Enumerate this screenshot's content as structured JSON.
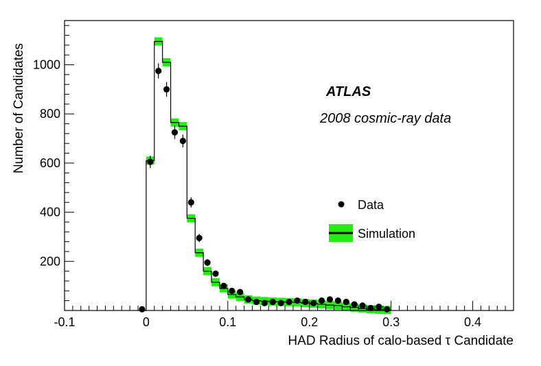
{
  "chart_data": {
    "type": "histogram",
    "title": "",
    "xlabel": "HAD Radius of calo-based τ Candidate",
    "ylabel": "Number of Candidates",
    "xlim": [
      -0.1,
      0.45
    ],
    "ylim": [
      0,
      1180
    ],
    "x_ticks": [
      -0.1,
      0,
      0.1,
      0.2,
      0.3,
      0.4
    ],
    "x_tick_labels": [
      "-0.1",
      "0",
      "0.1",
      "0.2",
      "0.3",
      "0.4"
    ],
    "y_ticks": [
      200,
      400,
      600,
      800,
      1000
    ],
    "y_tick_labels": [
      "200",
      "400",
      "600",
      "800",
      "1000"
    ],
    "bin_width": 0.01,
    "bin_centers": [
      -0.005,
      0.005,
      0.015,
      0.025,
      0.035,
      0.045,
      0.055,
      0.065,
      0.075,
      0.085,
      0.095,
      0.105,
      0.115,
      0.125,
      0.135,
      0.145,
      0.155,
      0.165,
      0.175,
      0.185,
      0.195,
      0.205,
      0.215,
      0.225,
      0.235,
      0.245,
      0.255,
      0.265,
      0.275,
      0.285,
      0.295
    ],
    "series": [
      {
        "name": "Data",
        "style": "markers",
        "values": [
          5,
          605,
          975,
          900,
          725,
          690,
          440,
          295,
          195,
          150,
          100,
          80,
          75,
          45,
          35,
          30,
          35,
          30,
          35,
          40,
          35,
          30,
          40,
          45,
          40,
          35,
          25,
          20,
          10,
          15,
          5
        ],
        "errors": [
          2,
          25,
          31,
          30,
          27,
          26,
          21,
          17,
          14,
          12,
          10,
          9,
          9,
          7,
          6,
          5,
          6,
          5,
          6,
          6,
          6,
          5,
          6,
          7,
          6,
          6,
          5,
          4,
          3,
          4,
          2
        ]
      },
      {
        "name": "Simulation",
        "style": "step-band",
        "values": [
          0,
          610,
          1095,
          1010,
          765,
          750,
          375,
          235,
          160,
          115,
          90,
          65,
          55,
          45,
          40,
          38,
          36,
          35,
          34,
          33,
          30,
          28,
          25,
          22,
          20,
          15,
          12,
          8,
          5,
          3,
          2
        ],
        "band_color": "#22ee11",
        "line_color": "#000000"
      }
    ],
    "annotations": {
      "experiment": "ATLAS",
      "dataset": "2008 cosmic-ray data"
    },
    "legend": {
      "position": "right",
      "entries": [
        "Data",
        "Simulation"
      ]
    }
  }
}
